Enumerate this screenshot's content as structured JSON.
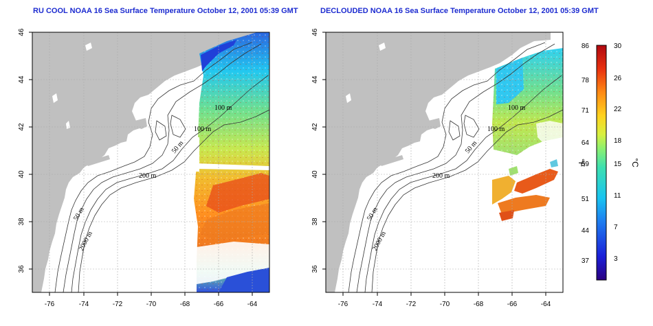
{
  "panels": [
    {
      "id": "left",
      "title": "RU COOL NOAA 16 Sea Surface Temperature October 12, 2001 05:39 GMT",
      "contour_labels": [
        "100 m",
        "100 m",
        "50 m",
        "200 m",
        "50 m",
        "2000 m"
      ]
    },
    {
      "id": "right",
      "title": "DECLOUDED NOAA 16 Sea Surface Temperature October 12, 2001 05:39 GMT",
      "contour_labels": [
        "100 m",
        "100 m",
        "50 m",
        "200 m",
        "50 m",
        "2000 m"
      ]
    }
  ],
  "axes": {
    "x_ticks": [
      "-76",
      "-74",
      "-72",
      "-70",
      "-68",
      "-66",
      "-64"
    ],
    "y_ticks": [
      "46",
      "44",
      "42",
      "40",
      "38",
      "36"
    ],
    "lon_range": [
      -77,
      -63
    ],
    "lat_range": [
      35,
      46
    ],
    "grid": true
  },
  "colorbar": {
    "fahrenheit_label": "°F",
    "celsius_label": "°C",
    "fahrenheit_ticks": [
      "86",
      "78",
      "71",
      "64",
      "59",
      "51",
      "44",
      "37"
    ],
    "celsius_ticks": [
      "30",
      "26",
      "22",
      "18",
      "15",
      "11",
      "7",
      "3"
    ],
    "celsius_range": [
      0,
      30
    ],
    "colors": [
      "#3b007a",
      "#1a1fd8",
      "#1e6df0",
      "#19b8f0",
      "#2de0c8",
      "#7cf08a",
      "#d6f040",
      "#ffd21e",
      "#ff8a14",
      "#e8300f",
      "#b80e10"
    ]
  },
  "colors": {
    "land": "#c0c0c0",
    "title": "#1c2bd0"
  }
}
